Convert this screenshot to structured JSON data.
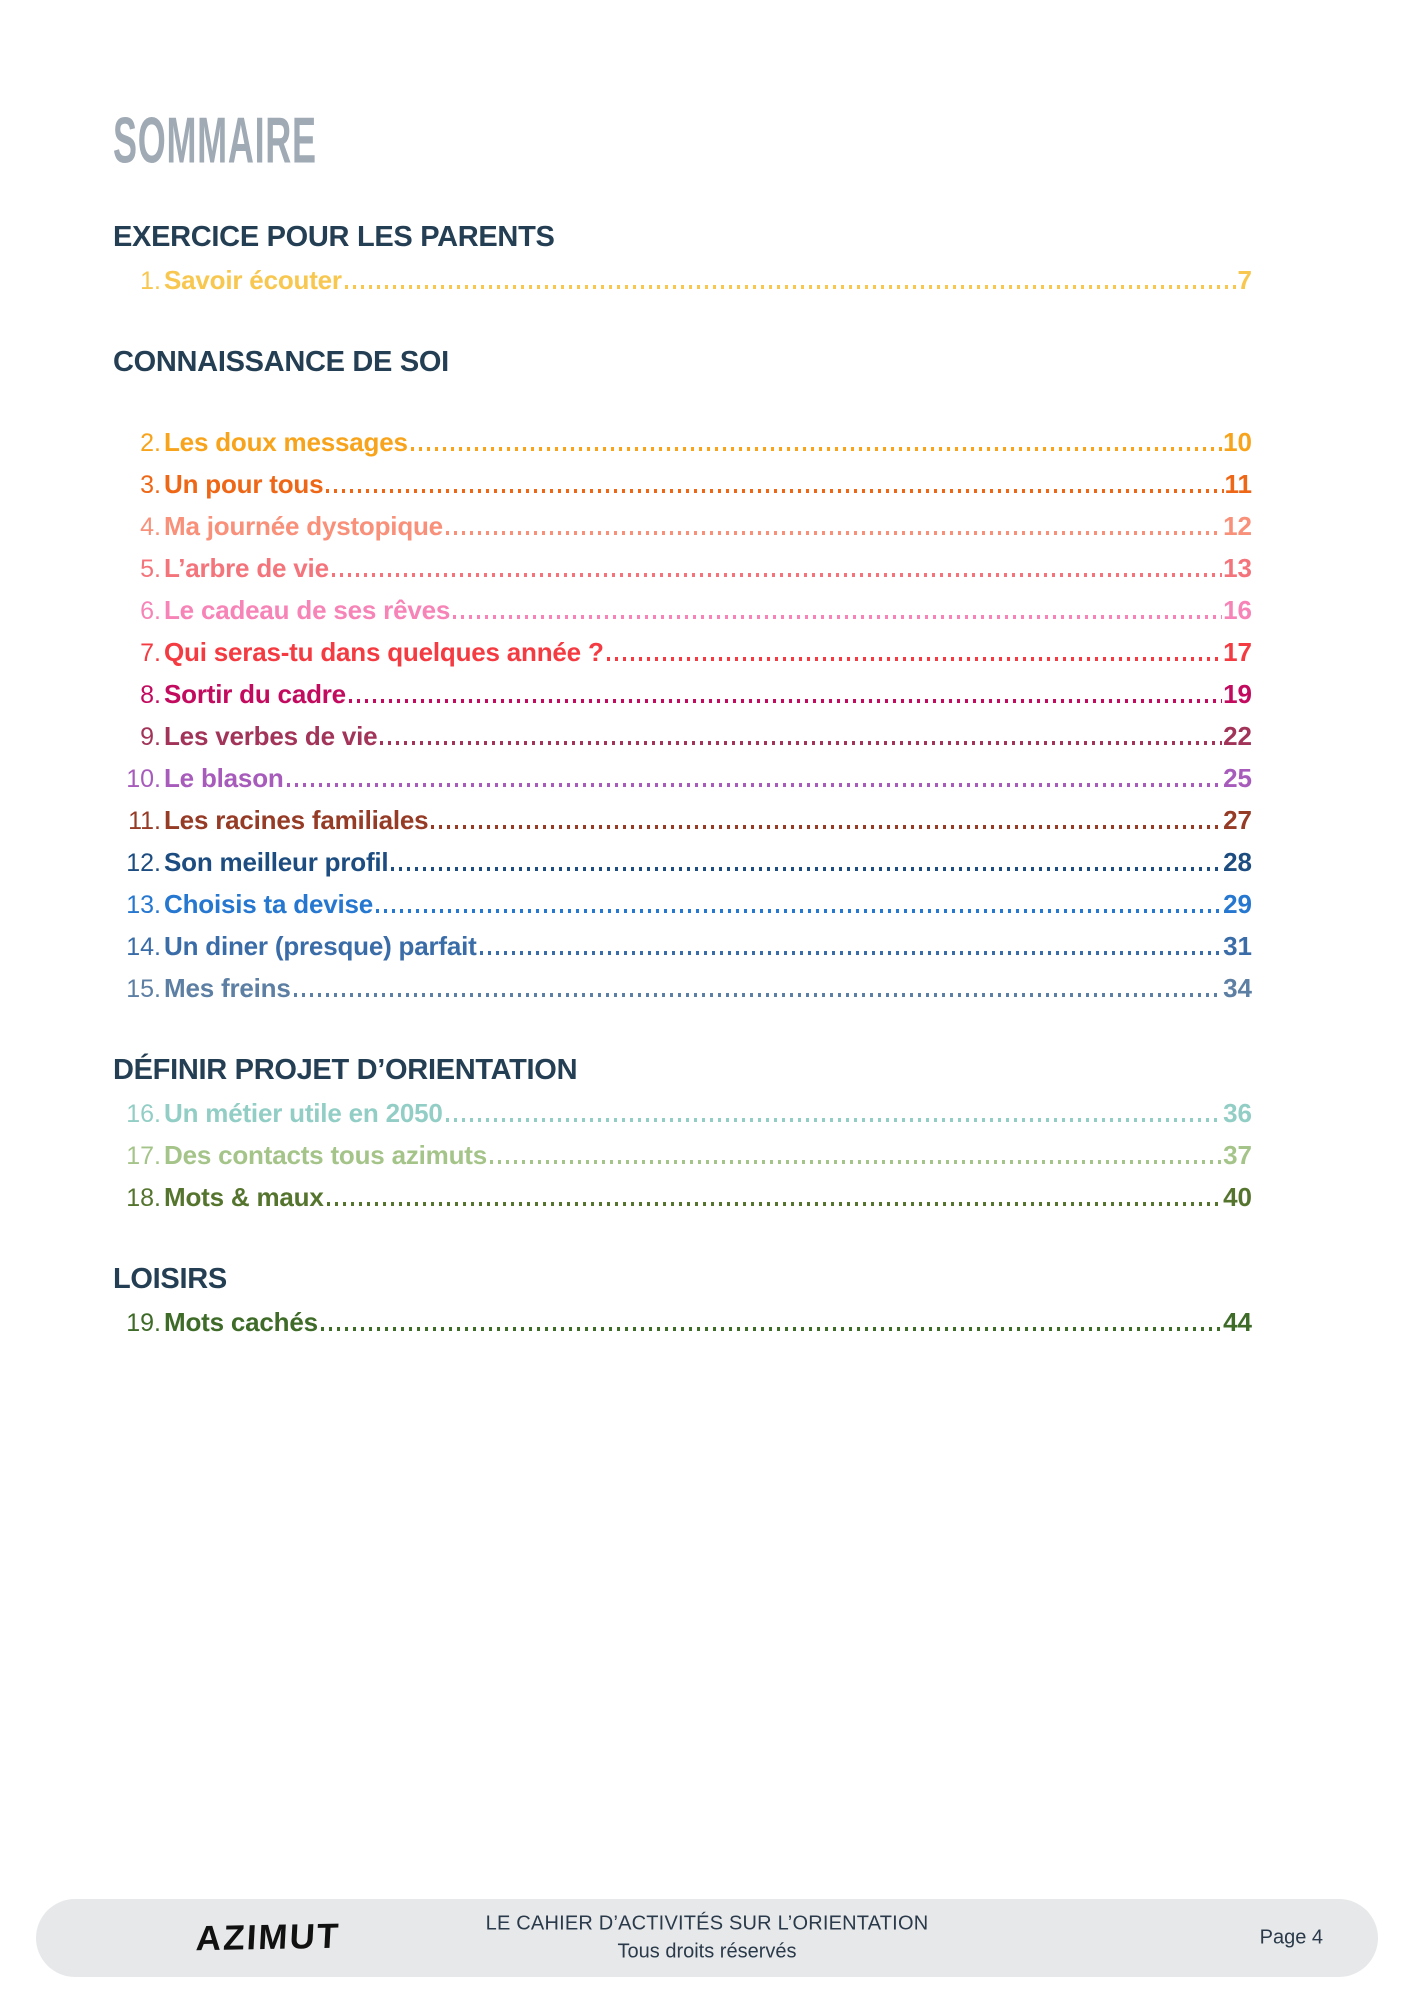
{
  "page": {
    "title": "SOMMAIRE"
  },
  "sections": [
    {
      "heading": "EXERCICE POUR LES PARENTS",
      "gap_before_entries": false,
      "entries": [
        {
          "num": "1.",
          "title": "Savoir écouter",
          "page": "7",
          "color": "#F7C74F"
        }
      ]
    },
    {
      "heading": "CONNAISSANCE DE SOI",
      "gap_before_entries": true,
      "entries": [
        {
          "num": "2.",
          "title": "Les doux messages",
          "page": "10",
          "color": "#F7A41C"
        },
        {
          "num": "3.",
          "title": "Un pour tous",
          "page": "11",
          "color": "#EE6716"
        },
        {
          "num": "4.",
          "title": "Ma journée dystopique",
          "page": "12",
          "color": "#F8907A"
        },
        {
          "num": "5.",
          "title": "L’arbre de vie",
          "page": "13",
          "color": "#F4747C"
        },
        {
          "num": "6.",
          "title": "Le cadeau de ses rêves",
          "page": "16",
          "color": "#F784B7"
        },
        {
          "num": "7.",
          "title": "Qui seras-tu dans quelques année ?",
          "page": "17",
          "color": "#F53B42"
        },
        {
          "num": "8.",
          "title": "Sortir du cadre",
          "page": "19",
          "color": "#C20B5F"
        },
        {
          "num": "9.",
          "title": "Les verbes de vie",
          "page": "22",
          "color": "#A23459"
        },
        {
          "num": "10.",
          "title": "Le blason",
          "page": "25",
          "color": "#A75CBC"
        },
        {
          "num": "11.",
          "title": "Les racines familiales",
          "page": "27",
          "color": "#953B26"
        },
        {
          "num": "12.",
          "title": "Son meilleur profil",
          "page": "28",
          "color": "#1D4D80"
        },
        {
          "num": "13.",
          "title": "Choisis ta devise",
          "page": "29",
          "color": "#2577D0"
        },
        {
          "num": "14.",
          "title": "Un diner (presque) parfait",
          "page": "31",
          "color": "#3A6CA8"
        },
        {
          "num": "15.",
          "title": "Mes freins",
          "page": "34",
          "color": "#5D7FA3"
        }
      ]
    },
    {
      "heading": "DÉFINIR PROJET D’ORIENTATION",
      "gap_before_entries": false,
      "entries": [
        {
          "num": "16.",
          "title": "Un métier utile en 2050",
          "page": "36",
          "color": "#92CEC5"
        },
        {
          "num": "17.",
          "title": "Des contacts tous azimuts",
          "page": "37",
          "color": "#A5C489"
        },
        {
          "num": "18.",
          "title": "Mots & maux",
          "page": "40",
          "color": "#55752F"
        }
      ]
    },
    {
      "heading": "LOISIRS",
      "gap_before_entries": false,
      "entries": [
        {
          "num": "19.",
          "title": "Mots cachés",
          "page": "44",
          "color": "#3E6B28"
        }
      ]
    }
  ],
  "footer": {
    "logo": "AZIMUT",
    "line1": "LE CAHIER D’ACTIVITÉS SUR L’ORIENTATION",
    "line2": "Tous droits réservés",
    "page_label": "Page 4"
  }
}
